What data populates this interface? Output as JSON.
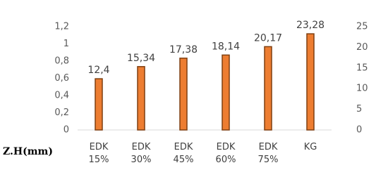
{
  "chart_data": {
    "type": "bar",
    "y_axis_label": "Z.H(mm)",
    "categories": [
      "EDK 15%",
      "EDK 30%",
      "EDK 45%",
      "EDK 60%",
      "EDK 75%",
      "KG"
    ],
    "series": [
      {
        "values": [
          12.4,
          15.34,
          17.38,
          18.14,
          20.17,
          23.28
        ],
        "value_labels": [
          "12,4",
          "15,34",
          "17,38",
          "18,14",
          "20,17",
          "23,28"
        ],
        "color": "#ed7d31",
        "axis": "y2"
      }
    ],
    "ylim": [
      0,
      1.2
    ],
    "yticks": [
      0,
      {
        "value": 0.2,
        "label": "0,2"
      },
      {
        "value": 0.4,
        "label": "0,4"
      },
      {
        "value": 0.6,
        "label": "0,6"
      },
      {
        "value": 0.8,
        "label": "0,8"
      },
      1,
      {
        "value": 1.2,
        "label": "1,2"
      }
    ],
    "y2lim": [
      0,
      25
    ],
    "y2ticks": [
      0,
      5,
      10,
      15,
      20,
      25
    ]
  }
}
